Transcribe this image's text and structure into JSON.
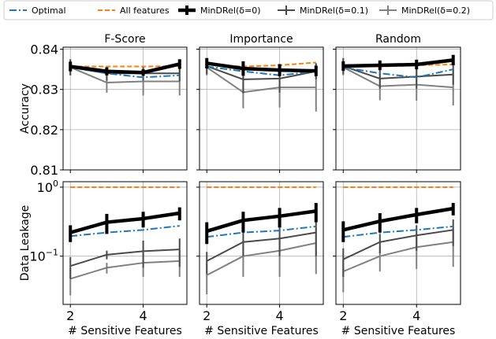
{
  "colors": {
    "optimal": "#1f77b4",
    "all_features": "#ff7f0e",
    "mindrel_0": "#000000",
    "mindrel_01": "#4a4a4a",
    "mindrel_02": "#808080",
    "grid": "#b0b0b0"
  },
  "chart_data": {
    "type": "line",
    "legend": {
      "placement": "top",
      "entries": [
        {
          "series": "optimal",
          "label": "Optimal",
          "style": "dash-dot"
        },
        {
          "series": "all_features",
          "label": "All features",
          "style": "dashed"
        },
        {
          "series": "mindrel_0",
          "label": "MinDRel(δ=0)",
          "style": "thick-errorbar"
        },
        {
          "series": "mindrel_01",
          "label": "MinDRel(δ=0.1)",
          "style": "errorbar"
        },
        {
          "series": "mindrel_02",
          "label": "MinDRel(δ=0.2)",
          "style": "errorbar"
        }
      ]
    },
    "columns": [
      "F-Score",
      "Importance",
      "Random"
    ],
    "xlabel": "# Sensitive Features",
    "x": [
      2,
      3,
      4,
      5
    ],
    "xlim": [
      1.8,
      5.2
    ],
    "xticks": [
      {
        "value": 2,
        "label": "2"
      },
      {
        "value": 4,
        "label": "4"
      }
    ],
    "grid": true,
    "rows": [
      {
        "ylabel": "Accuracy",
        "scale": "linear",
        "ylim": [
          0.81,
          0.8405
        ],
        "yticks": [
          {
            "value": 0.81,
            "label": "0.81"
          },
          {
            "value": 0.82,
            "label": "0.82"
          },
          {
            "value": 0.83,
            "label": "0.83"
          },
          {
            "value": 0.84,
            "label": "0.84"
          }
        ],
        "panels": [
          {
            "optimal": [
              0.8355,
              0.834,
              0.833,
              0.8335
            ],
            "all_features": [
              0.8357,
              0.8357,
              0.8357,
              0.8358
            ],
            "mindrel_0": {
              "values": [
                0.8357,
                0.8345,
                0.8342,
                0.8363
              ],
              "err": [
                0.0012,
                0.001,
                0.0008,
                0.0012
              ]
            },
            "mindrel_01": {
              "values": [
                0.8355,
                0.834,
                0.834,
                0.834
              ],
              "err": [
                0.002,
                0.0018,
                0.0018,
                0.002
              ]
            },
            "mindrel_02": {
              "values": [
                0.8355,
                0.8317,
                0.832,
                0.832
              ],
              "err": [
                0.002,
                0.0025,
                0.0035,
                0.0035
              ]
            }
          },
          {
            "optimal": [
              0.8357,
              0.8345,
              0.8335,
              0.8345
            ],
            "all_features": [
              0.8362,
              0.8357,
              0.836,
              0.8367
            ],
            "mindrel_0": {
              "values": [
                0.8365,
                0.8352,
                0.8348,
                0.8346
              ],
              "err": [
                0.0013,
                0.0018,
                0.0015,
                0.0013
              ]
            },
            "mindrel_01": {
              "values": [
                0.8358,
                0.8325,
                0.8327,
                0.8345
              ],
              "err": [
                0.002,
                0.0035,
                0.0035,
                0.002
              ]
            },
            "mindrel_02": {
              "values": [
                0.8355,
                0.8293,
                0.8305,
                0.8305
              ],
              "err": [
                0.002,
                0.004,
                0.005,
                0.006
              ]
            }
          },
          {
            "optimal": [
              0.8355,
              0.834,
              0.833,
              0.835
            ],
            "all_features": [
              0.8357,
              0.8357,
              0.836,
              0.8362
            ],
            "mindrel_0": {
              "values": [
                0.8358,
                0.836,
                0.8362,
                0.8373
              ],
              "err": [
                0.0012,
                0.0012,
                0.0012,
                0.0013
              ]
            },
            "mindrel_01": {
              "values": [
                0.8358,
                0.8327,
                0.8332,
                0.8337
              ],
              "err": [
                0.002,
                0.0025,
                0.003,
                0.0025
              ]
            },
            "mindrel_02": {
              "values": [
                0.8355,
                0.8308,
                0.8312,
                0.8305
              ],
              "err": [
                0.002,
                0.0035,
                0.004,
                0.0045
              ]
            }
          }
        ]
      },
      {
        "ylabel": "Data Leakage",
        "scale": "log",
        "ylim": [
          0.02,
          1.2
        ],
        "yticks": [
          {
            "value": 1,
            "label": "10",
            "exp": "0"
          },
          {
            "value": 0.1,
            "label": "10",
            "exp": "−1"
          }
        ],
        "panels": [
          {
            "optimal": [
              0.195,
              0.22,
              0.24,
              0.275
            ],
            "all_features": [
              1.0,
              1.0,
              1.0,
              1.0
            ],
            "mindrel_0": {
              "values": [
                0.22,
                0.31,
                0.35,
                0.42
              ],
              "err": [
                0.06,
                0.1,
                0.09,
                0.09
              ]
            },
            "mindrel_01": {
              "values": [
                0.072,
                0.105,
                0.118,
                0.125
              ],
              "err": [
                0.025,
                0.015,
                0.05,
                0.055
              ]
            },
            "mindrel_02": {
              "values": [
                0.047,
                0.068,
                0.08,
                0.085
              ],
              "err": [
                0.02,
                0.012,
                0.03,
                0.035
              ]
            }
          },
          {
            "optimal": [
              0.19,
              0.22,
              0.235,
              0.27
            ],
            "all_features": [
              1.0,
              1.0,
              1.0,
              1.0
            ],
            "mindrel_0": {
              "values": [
                0.23,
                0.33,
                0.38,
                0.45
              ],
              "err": [
                0.08,
                0.11,
                0.12,
                0.14
              ]
            },
            "mindrel_01": {
              "values": [
                0.085,
                0.16,
                0.18,
                0.22
              ],
              "err": [
                0.03,
                0.06,
                0.08,
                0.12
              ]
            },
            "mindrel_02": {
              "values": [
                0.053,
                0.1,
                0.12,
                0.155
              ],
              "err": [
                0.025,
                0.05,
                0.07,
                0.1
              ]
            }
          },
          {
            "optimal": [
              0.19,
              0.22,
              0.24,
              0.27
            ],
            "all_features": [
              1.0,
              1.0,
              1.0,
              1.0
            ],
            "mindrel_0": {
              "values": [
                0.24,
                0.32,
                0.4,
                0.49
              ],
              "err": [
                0.08,
                0.1,
                0.1,
                0.1
              ]
            },
            "mindrel_01": {
              "values": [
                0.09,
                0.16,
                0.2,
                0.24
              ],
              "err": [
                0.04,
                0.05,
                0.08,
                0.1
              ]
            },
            "mindrel_02": {
              "values": [
                0.06,
                0.1,
                0.135,
                0.16
              ],
              "err": [
                0.03,
                0.04,
                0.07,
                0.09
              ]
            }
          }
        ]
      }
    ]
  }
}
